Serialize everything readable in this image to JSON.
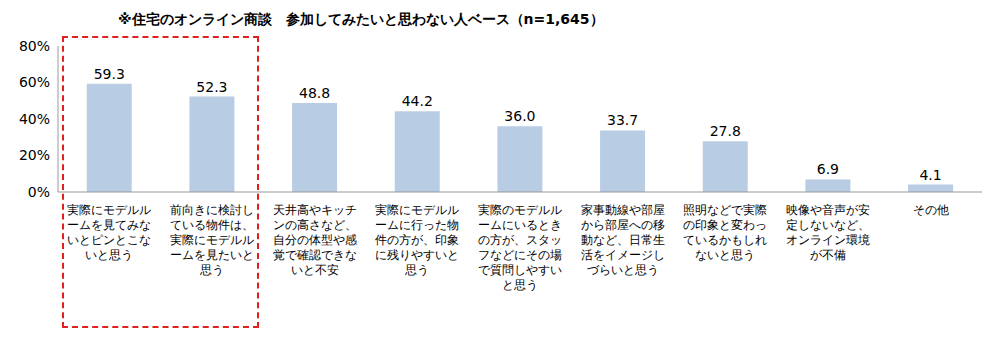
{
  "chart_data": {
    "type": "bar",
    "title": "※住宅のオンライン商談　参加してみたいと思わない人ベース（n=1,645）",
    "categories": [
      "実際にモデルルームを見てみないとピンとこないと思う",
      "前向きに検討している物件は、実際にモデルルームを見たいと思う",
      "天井高やキッチンの高さなど、自分の体型や感覚で確認できないと不安",
      "実際にモデルルームに行った物件の方が、印象に残りやすいと思う",
      "実際のモデルルームにいるときの方が、スタッフなどにその場で質問しやすいと思う",
      "家事動線や部屋から部屋への移動など、日常生活をイメージしづらいと思う",
      "照明などで実際の印象と変わっているかもしれないと思う",
      "映像や音声が安定しないなど、オンライン環境が不備",
      "その他"
    ],
    "values": [
      59.3,
      52.3,
      48.8,
      44.2,
      36.0,
      33.7,
      27.8,
      6.9,
      4.1
    ],
    "value_labels": [
      "59.3",
      "52.3",
      "48.8",
      "44.2",
      "36.0",
      "33.7",
      "27.8",
      "6.9",
      "4.1"
    ],
    "color": "#b8cce4",
    "ylim": [
      0,
      80
    ],
    "yticks": [
      {
        "value": 0,
        "label": "0%"
      },
      {
        "value": 20,
        "label": "20%"
      },
      {
        "value": 40,
        "label": "40%"
      },
      {
        "value": 60,
        "label": "60%"
      },
      {
        "value": 80,
        "label": "80%"
      }
    ],
    "grid": false,
    "data_labels": true
  }
}
